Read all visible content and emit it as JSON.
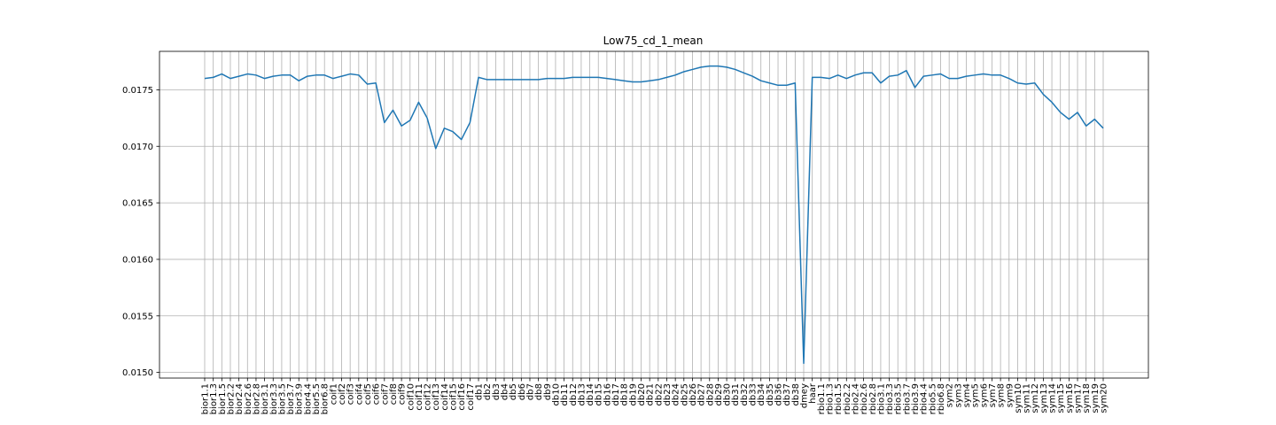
{
  "chart_data": {
    "type": "line",
    "title": "Low75_cd_1_mean",
    "xlabel": "",
    "ylabel": "",
    "ylim": [
      0.01495,
      0.01784
    ],
    "grid": true,
    "yticks": [
      0.015,
      0.0155,
      0.016,
      0.0165,
      0.017,
      0.0175
    ],
    "ytick_labels": [
      "0.0150",
      "0.0155",
      "0.0160",
      "0.0165",
      "0.0170",
      "0.0175"
    ],
    "categories": [
      "bior1.1",
      "bior1.3",
      "bior1.5",
      "bior2.2",
      "bior2.4",
      "bior2.6",
      "bior2.8",
      "bior3.1",
      "bior3.3",
      "bior3.5",
      "bior3.7",
      "bior3.9",
      "bior4.4",
      "bior5.5",
      "bior6.8",
      "coif1",
      "coif2",
      "coif3",
      "coif4",
      "coif5",
      "coif6",
      "coif7",
      "coif8",
      "coif9",
      "coif10",
      "coif11",
      "coif12",
      "coif13",
      "coif14",
      "coif15",
      "coif16",
      "coif17",
      "db1",
      "db2",
      "db3",
      "db4",
      "db5",
      "db6",
      "db7",
      "db8",
      "db9",
      "db10",
      "db11",
      "db12",
      "db13",
      "db14",
      "db15",
      "db16",
      "db17",
      "db18",
      "db19",
      "db20",
      "db21",
      "db22",
      "db23",
      "db24",
      "db25",
      "db26",
      "db27",
      "db28",
      "db29",
      "db30",
      "db31",
      "db32",
      "db33",
      "db34",
      "db35",
      "db36",
      "db37",
      "db38",
      "dmey",
      "haar",
      "rbio1.1",
      "rbio1.3",
      "rbio1.5",
      "rbio2.2",
      "rbio2.4",
      "rbio2.6",
      "rbio2.8",
      "rbio3.1",
      "rbio3.3",
      "rbio3.5",
      "rbio3.7",
      "rbio3.9",
      "rbio4.4",
      "rbio5.5",
      "rbio6.8",
      "sym2",
      "sym3",
      "sym4",
      "sym5",
      "sym6",
      "sym7",
      "sym8",
      "sym9",
      "sym10",
      "sym11",
      "sym12",
      "sym13",
      "sym14",
      "sym15",
      "sym16",
      "sym17",
      "sym18",
      "sym19",
      "sym20"
    ],
    "series": [
      {
        "color": "#1f77b4",
        "values": [
          0.0176,
          0.01761,
          0.01764,
          0.0176,
          0.01762,
          0.01764,
          0.01763,
          0.0176,
          0.01762,
          0.01763,
          0.01763,
          0.01758,
          0.01762,
          0.01763,
          0.01763,
          0.0176,
          0.01762,
          0.01764,
          0.01763,
          0.01755,
          0.01756,
          0.01721,
          0.01732,
          0.01718,
          0.01723,
          0.01739,
          0.01725,
          0.01698,
          0.01716,
          0.01713,
          0.01706,
          0.01721,
          0.01761,
          0.01759,
          0.01759,
          0.01759,
          0.01759,
          0.01759,
          0.01759,
          0.01759,
          0.0176,
          0.0176,
          0.0176,
          0.01761,
          0.01761,
          0.01761,
          0.01761,
          0.0176,
          0.01759,
          0.01758,
          0.01757,
          0.01757,
          0.01758,
          0.01759,
          0.01761,
          0.01763,
          0.01766,
          0.01768,
          0.0177,
          0.01771,
          0.01771,
          0.0177,
          0.01768,
          0.01765,
          0.01762,
          0.01758,
          0.01756,
          0.01754,
          0.01754,
          0.01756,
          0.01508,
          0.01761,
          0.01761,
          0.0176,
          0.01763,
          0.0176,
          0.01763,
          0.01765,
          0.01765,
          0.01756,
          0.01762,
          0.01763,
          0.01767,
          0.01752,
          0.01762,
          0.01763,
          0.01764,
          0.0176,
          0.0176,
          0.01762,
          0.01763,
          0.01764,
          0.01763,
          0.01763,
          0.0176,
          0.01756,
          0.01755,
          0.01756,
          0.01746,
          0.01739,
          0.0173,
          0.01724,
          0.0173,
          0.01718,
          0.01724,
          0.01716
        ]
      }
    ]
  }
}
